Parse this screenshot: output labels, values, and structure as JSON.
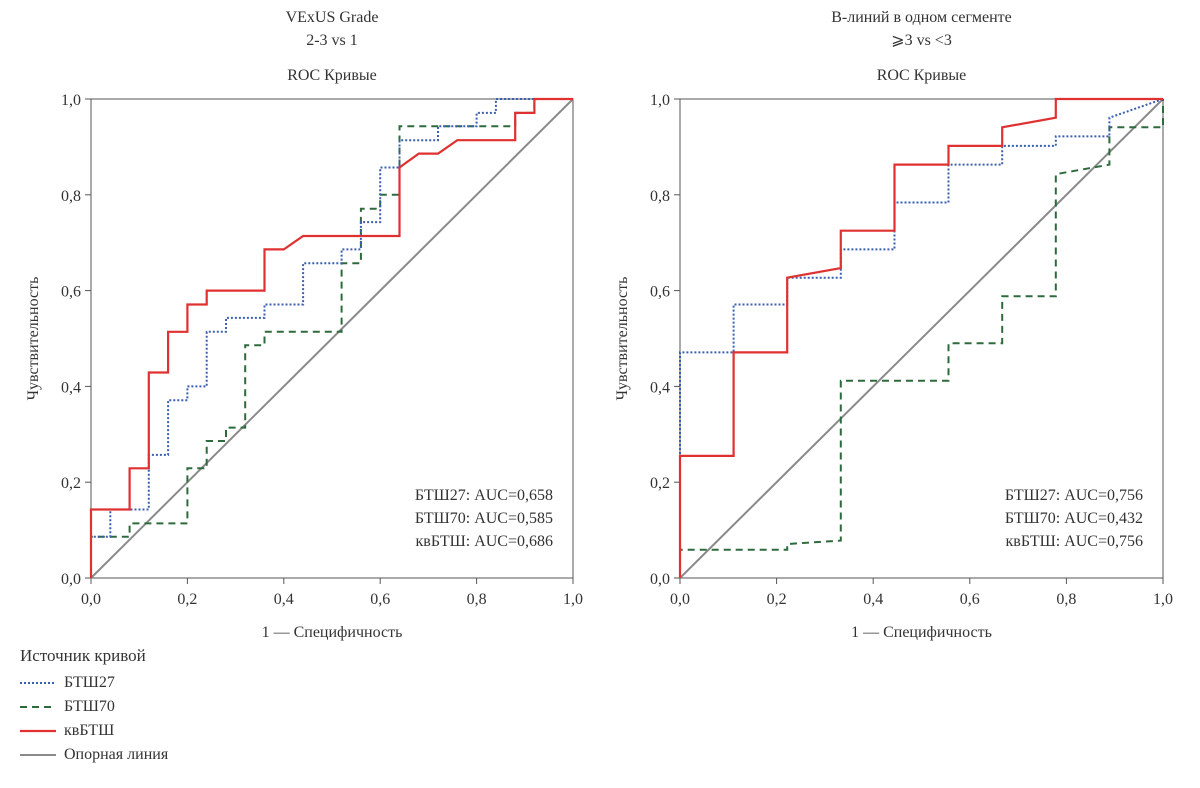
{
  "legend": {
    "title": "Источник кривой",
    "items": [
      {
        "label": "БТШ27",
        "color": "#3a5fb0",
        "style": "dotted"
      },
      {
        "label": "БТШ70",
        "color": "#2e6b3c",
        "style": "dashed"
      },
      {
        "label": "квБТШ",
        "color": "#e03131",
        "style": "solid"
      },
      {
        "label": "Опорная линия",
        "color": "#8a8a8a",
        "style": "solid"
      }
    ]
  },
  "chart_data": [
    {
      "type": "line",
      "title_lines": [
        "VExUS Grade",
        "2-3 vs 1"
      ],
      "subtitle": "ROC Кривые",
      "xlabel": "1 — Специфичность",
      "ylabel": "Чувствительность",
      "xlim": [
        0,
        1
      ],
      "ylim": [
        0,
        1
      ],
      "ticks": [
        "0,0",
        "0,2",
        "0,4",
        "0,6",
        "0,8",
        "1,0"
      ],
      "annotations": [
        "БТШ27: AUC=0,658",
        "БТШ70: AUC=0,585",
        "квБТШ: AUC=0,686"
      ],
      "series": [
        {
          "name": "БТШ27",
          "color": "#3a5fb0",
          "style": "dotted",
          "x": [
            0,
            0,
            0.04,
            0.04,
            0.12,
            0.12,
            0.16,
            0.16,
            0.2,
            0.2,
            0.24,
            0.24,
            0.28,
            0.28,
            0.36,
            0.36,
            0.44,
            0.44,
            0.52,
            0.52,
            0.56,
            0.56,
            0.6,
            0.6,
            0.64,
            0.64,
            0.72,
            0.72,
            0.8,
            0.8,
            0.84,
            0.84,
            1
          ],
          "y": [
            0,
            0.086,
            0.086,
            0.143,
            0.143,
            0.257,
            0.257,
            0.371,
            0.371,
            0.4,
            0.4,
            0.514,
            0.514,
            0.543,
            0.543,
            0.571,
            0.571,
            0.657,
            0.657,
            0.686,
            0.686,
            0.743,
            0.743,
            0.857,
            0.857,
            0.914,
            0.914,
            0.943,
            0.943,
            0.971,
            0.971,
            1,
            1
          ]
        },
        {
          "name": "БТШ70",
          "color": "#2e6b3c",
          "style": "dashed",
          "x": [
            0,
            0,
            0.08,
            0.08,
            0.2,
            0.2,
            0.24,
            0.24,
            0.28,
            0.28,
            0.32,
            0.32,
            0.36,
            0.36,
            0.48,
            0.48,
            0.52,
            0.52,
            0.56,
            0.56,
            0.6,
            0.6,
            0.64,
            0.64,
            0.88,
            0.88,
            0.92,
            0.92,
            1
          ],
          "y": [
            0,
            0.086,
            0.086,
            0.114,
            0.114,
            0.229,
            0.229,
            0.286,
            0.286,
            0.314,
            0.314,
            0.486,
            0.486,
            0.514,
            0.514,
            0.514,
            0.514,
            0.657,
            0.657,
            0.771,
            0.771,
            0.8,
            0.8,
            0.943,
            0.943,
            0.971,
            0.971,
            1,
            1
          ]
        },
        {
          "name": "квБТШ",
          "color": "#e03131",
          "style": "solid",
          "x": [
            0,
            0,
            0.08,
            0.08,
            0.12,
            0.12,
            0.16,
            0.16,
            0.2,
            0.2,
            0.24,
            0.24,
            0.36,
            0.36,
            0.4,
            0.44,
            0.64,
            0.64,
            0.68,
            0.72,
            0.76,
            0.88,
            0.88,
            0.92,
            0.92,
            1
          ],
          "y": [
            0,
            0.143,
            0.143,
            0.229,
            0.229,
            0.429,
            0.429,
            0.514,
            0.514,
            0.571,
            0.571,
            0.6,
            0.6,
            0.686,
            0.686,
            0.714,
            0.714,
            0.857,
            0.886,
            0.886,
            0.914,
            0.914,
            0.971,
            0.971,
            1,
            1
          ]
        },
        {
          "name": "Опорная линия",
          "color": "#8a8a8a",
          "style": "solid",
          "x": [
            0,
            1
          ],
          "y": [
            0,
            1
          ]
        }
      ]
    },
    {
      "type": "line",
      "title_lines": [
        "В-линий в одном сегменте",
        "⩾3 vs <3"
      ],
      "subtitle": "ROC Кривые",
      "xlabel": "1 — Специфичность",
      "ylabel": "Чувствительность",
      "xlim": [
        0,
        1
      ],
      "ylim": [
        0,
        1
      ],
      "ticks": [
        "0,0",
        "0,2",
        "0,4",
        "0,6",
        "0,8",
        "1,0"
      ],
      "annotations": [
        "БТШ27: AUC=0,756",
        "БТШ70: AUC=0,432",
        "квБТШ: AUC=0,756"
      ],
      "series": [
        {
          "name": "БТШ27",
          "color": "#3a5fb0",
          "style": "dotted",
          "x": [
            0,
            0,
            0.111,
            0.111,
            0.222,
            0.222,
            0.333,
            0.333,
            0.444,
            0.444,
            0.556,
            0.556,
            0.667,
            0.667,
            0.778,
            0.778,
            0.889,
            0.889,
            1
          ],
          "y": [
            0,
            0.471,
            0.471,
            0.571,
            0.571,
            0.627,
            0.627,
            0.686,
            0.686,
            0.784,
            0.784,
            0.863,
            0.863,
            0.902,
            0.902,
            0.922,
            0.922,
            0.961,
            1
          ]
        },
        {
          "name": "БТШ70",
          "color": "#2e6b3c",
          "style": "dashed",
          "x": [
            0,
            0,
            0.222,
            0.222,
            0.333,
            0.333,
            0.556,
            0.556,
            0.667,
            0.667,
            0.778,
            0.778,
            0.889,
            0.889,
            1,
            1
          ],
          "y": [
            0,
            0.059,
            0.059,
            0.071,
            0.078,
            0.412,
            0.412,
            0.49,
            0.49,
            0.588,
            0.588,
            0.843,
            0.863,
            0.941,
            0.941,
            1
          ]
        },
        {
          "name": "квБТШ",
          "color": "#e03131",
          "style": "solid",
          "x": [
            0,
            0,
            0.111,
            0.111,
            0.222,
            0.222,
            0.333,
            0.333,
            0.444,
            0.444,
            0.556,
            0.556,
            0.667,
            0.667,
            0.778,
            0.778,
            1
          ],
          "y": [
            0,
            0.255,
            0.255,
            0.471,
            0.471,
            0.627,
            0.647,
            0.725,
            0.725,
            0.863,
            0.863,
            0.902,
            0.902,
            0.941,
            0.961,
            1,
            1
          ]
        },
        {
          "name": "Опорная линия",
          "color": "#8a8a8a",
          "style": "solid",
          "x": [
            0,
            1
          ],
          "y": [
            0,
            1
          ]
        }
      ]
    }
  ]
}
